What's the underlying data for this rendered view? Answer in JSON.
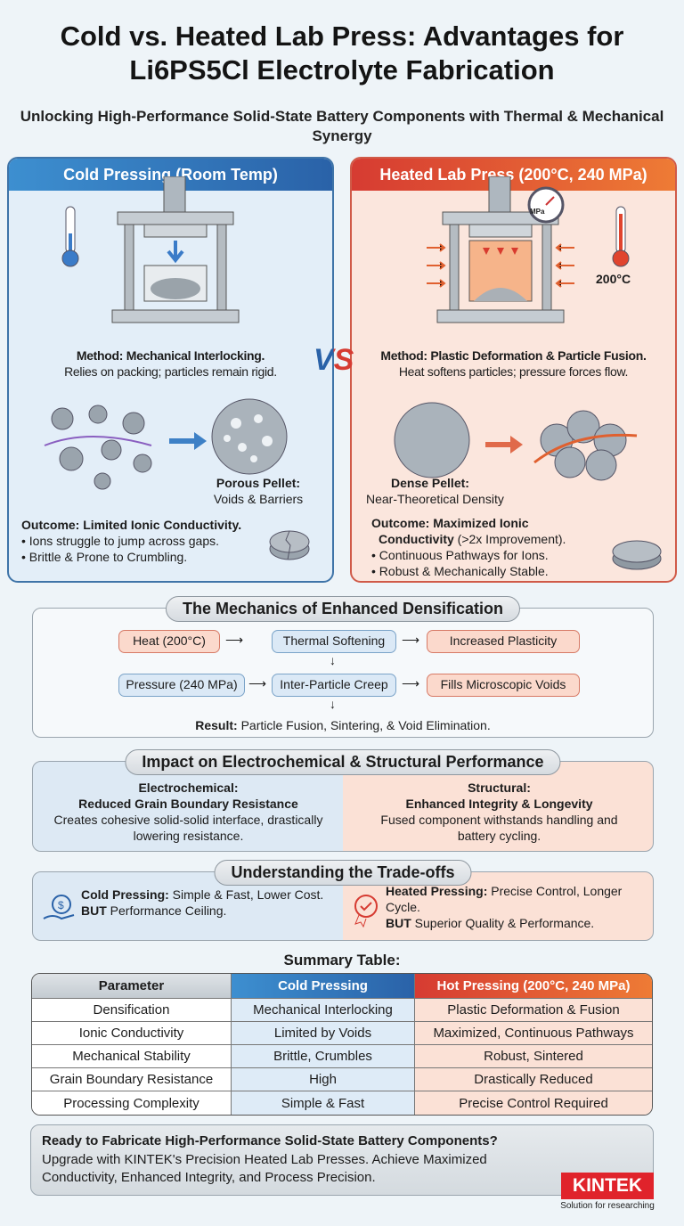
{
  "title": "Cold vs. Heated Lab Press: Advantages for Li6PS5Cl Electrolyte Fabrication",
  "subtitle": "Unlocking High-Performance Solid-State Battery Components with Thermal & Mechanical Synergy",
  "vs": "VS",
  "cold": {
    "header": "Cold Pressing (Room Temp)",
    "method_bold": "Method: Mechanical Interlocking.",
    "method": "Relies on packing; particles remain rigid.",
    "pellet_bold": "Porous Pellet:",
    "pellet": "Voids & Barriers",
    "outcome_bold": "Outcome: Limited Ionic Conductivity.",
    "bullets": [
      "• Ions struggle to jump across gaps.",
      "• Brittle & Prone to Crumbling."
    ]
  },
  "hot": {
    "header": "Heated Lab Press (200°C, 240 MPa)",
    "gauge_label": "MPa",
    "temp_label": "200°C",
    "method_bold": "Method: Plastic Deformation & Particle Fusion.",
    "method": "Heat softens particles; pressure forces flow.",
    "pellet_bold": "Dense Pellet:",
    "pellet": "Near-Theoretical Density",
    "outcome_bold1": "Outcome: Maximized Ionic",
    "outcome_bold2": "Conductivity",
    "outcome_rest": " (>2x Improvement).",
    "bullets": [
      "• Continuous Pathways for Ions.",
      "• Robust & Mechanically Stable."
    ]
  },
  "mechanics": {
    "title": "The Mechanics of Enhanced Densification",
    "nodes": [
      "Heat (200°C)",
      "Thermal Softening",
      "Increased Plasticity",
      "Pressure (240 MPa)",
      "Inter-Particle Creep",
      "Fills Microscopic Voids"
    ],
    "result_bold": "Result:",
    "result": " Particle Fusion, Sintering, & Void Elimination."
  },
  "impact": {
    "title": "Impact on Electrochemical & Structural Performance",
    "left": {
      "h1": "Electrochemical:",
      "h2": "Reduced Grain Boundary Resistance",
      "text": "Creates cohesive solid-solid interface, drastically lowering resistance."
    },
    "right": {
      "h1": "Structural:",
      "h2": "Enhanced Integrity & Longevity",
      "text": "Fused component withstands handling and battery cycling."
    }
  },
  "tradeoffs": {
    "title": "Understanding the Trade-offs",
    "left": {
      "b1": "Cold Pressing:",
      "t1": " Simple & Fast, Lower Cost.",
      "b2": "BUT",
      "t2": " Performance Ceiling."
    },
    "right": {
      "b1": "Heated Pressing:",
      "t1": " Precise Control, Longer Cycle.",
      "b2": "BUT",
      "t2": " Superior Quality & Performance."
    }
  },
  "table": {
    "title": "Summary Table:",
    "headers": [
      "Parameter",
      "Cold Pressing",
      "Hot Pressing (200°C, 240 MPa)"
    ],
    "rows": [
      [
        "Densification",
        "Mechanical Interlocking",
        "Plastic Deformation & Fusion"
      ],
      [
        "Ionic Conductivity",
        "Limited by Voids",
        "Maximized, Continuous Pathways"
      ],
      [
        "Mechanical Stability",
        "Brittle, Crumbles",
        "Robust, Sintered"
      ],
      [
        "Grain Boundary Resistance",
        "High",
        "Drastically Reduced"
      ],
      [
        "Processing Complexity",
        "Simple & Fast",
        "Precise Control Required"
      ]
    ]
  },
  "cta": {
    "heading": "Ready to Fabricate High-Performance Solid-State Battery Components?",
    "text": "Upgrade with KINTEK's Precision Heated Lab Presses. Achieve Maximized Conductivity, Enhanced Integrity, and Process Precision."
  },
  "logo": {
    "name": "KINTEK",
    "tagline": "Solution for researching"
  },
  "colors": {
    "cold": "#2a62a8",
    "hot": "#d63b32",
    "logo": "#e0232b"
  }
}
